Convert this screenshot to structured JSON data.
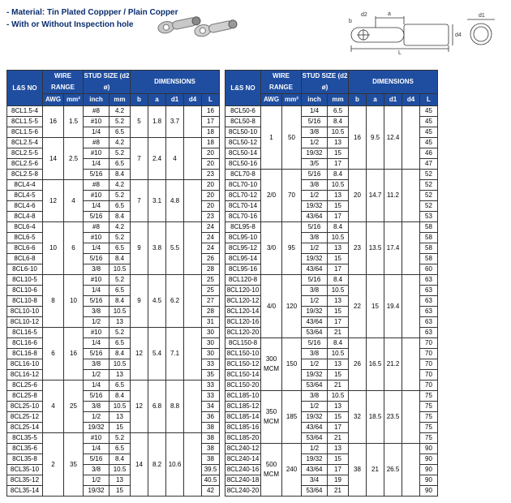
{
  "header": {
    "material_line1": "- Material: Tin Plated Coppper / Plain Copper",
    "material_line2": "- With or Without Inspection hole"
  },
  "table_headers": {
    "lsno": "L&S NO",
    "wire_range": "WIRE RANGE",
    "stud_size": "STUD SIZE (d2 ø)",
    "dimensions": "DIMENSIONS",
    "awg": "AWG",
    "mm2": "mm²",
    "inch": "inch",
    "mm": "mm",
    "b": "b",
    "a": "a",
    "d1": "d1",
    "d4": "d4",
    "l": "L"
  },
  "left_groups": [
    {
      "awg": "16",
      "mm2": "1.5",
      "b": "5",
      "a": "1.8",
      "d1": "3.7",
      "d4": "",
      "rows": [
        {
          "lsno": "8CL1.5-4",
          "inch": "#8",
          "mm": "4.2",
          "l": "16"
        },
        {
          "lsno": "8CL1.5-5",
          "inch": "#10",
          "mm": "5.2",
          "l": "17"
        },
        {
          "lsno": "8CL1.5-6",
          "inch": "1/4",
          "mm": "6.5",
          "l": "18"
        }
      ]
    },
    {
      "awg": "14",
      "mm2": "2.5",
      "b": "7",
      "a": "2.4",
      "d1": "4",
      "d4": "",
      "rows": [
        {
          "lsno": "8CL2.5-4",
          "inch": "#8",
          "mm": "4.2",
          "l": "18"
        },
        {
          "lsno": "8CL2.5-5",
          "inch": "#10",
          "mm": "5.2",
          "l": "20"
        },
        {
          "lsno": "8CL2.5-6",
          "inch": "1/4",
          "mm": "6.5",
          "l": "20"
        },
        {
          "lsno": "8CL2.5-8",
          "inch": "5/16",
          "mm": "8.4",
          "l": "23"
        }
      ]
    },
    {
      "awg": "12",
      "mm2": "4",
      "b": "7",
      "a": "3.1",
      "d1": "4.8",
      "d4": "",
      "rows": [
        {
          "lsno": "8CL4-4",
          "inch": "#8",
          "mm": "4.2",
          "l": "20"
        },
        {
          "lsno": "8CL4-5",
          "inch": "#10",
          "mm": "5.2",
          "l": "20"
        },
        {
          "lsno": "8CL4-6",
          "inch": "1/4",
          "mm": "6.5",
          "l": "20"
        },
        {
          "lsno": "8CL4-8",
          "inch": "5/16",
          "mm": "8.4",
          "l": "23"
        }
      ]
    },
    {
      "awg": "10",
      "mm2": "6",
      "b": "9",
      "a": "3.8",
      "d1": "5.5",
      "d4": "",
      "rows": [
        {
          "lsno": "8CL6-4",
          "inch": "#8",
          "mm": "4.2",
          "l": "24"
        },
        {
          "lsno": "8CL6-5",
          "inch": "#10",
          "mm": "5.2",
          "l": "24"
        },
        {
          "lsno": "8CL6-6",
          "inch": "1/4",
          "mm": "6.5",
          "l": "24"
        },
        {
          "lsno": "8CL6-8",
          "inch": "5/16",
          "mm": "8.4",
          "l": "26"
        },
        {
          "lsno": "8CL6-10",
          "inch": "3/8",
          "mm": "10.5",
          "l": "28"
        }
      ]
    },
    {
      "awg": "8",
      "mm2": "10",
      "b": "9",
      "a": "4.5",
      "d1": "6.2",
      "d4": "",
      "rows": [
        {
          "lsno": "8CL10-5",
          "inch": "#10",
          "mm": "5.2",
          "l": "25"
        },
        {
          "lsno": "8CL10-6",
          "inch": "1/4",
          "mm": "6.5",
          "l": "25"
        },
        {
          "lsno": "8CL10-8",
          "inch": "5/16",
          "mm": "8.4",
          "l": "27"
        },
        {
          "lsno": "8CL10-10",
          "inch": "3/8",
          "mm": "10.5",
          "l": "28"
        },
        {
          "lsno": "8CL10-12",
          "inch": "1/2",
          "mm": "13",
          "l": "31"
        }
      ]
    },
    {
      "awg": "6",
      "mm2": "16",
      "b": "12",
      "a": "5.4",
      "d1": "7.1",
      "d4": "",
      "rows": [
        {
          "lsno": "8CL16-5",
          "inch": "#10",
          "mm": "5.2",
          "l": "30"
        },
        {
          "lsno": "8CL16-6",
          "inch": "1/4",
          "mm": "6.5",
          "l": "30"
        },
        {
          "lsno": "8CL16-8",
          "inch": "5/16",
          "mm": "8.4",
          "l": "30"
        },
        {
          "lsno": "8CL16-10",
          "inch": "3/8",
          "mm": "10.5",
          "l": "33"
        },
        {
          "lsno": "8CL16-12",
          "inch": "1/2",
          "mm": "13",
          "l": "35"
        }
      ]
    },
    {
      "awg": "4",
      "mm2": "25",
      "b": "12",
      "a": "6.8",
      "d1": "8.8",
      "d4": "",
      "rows": [
        {
          "lsno": "8CL25-6",
          "inch": "1/4",
          "mm": "6.5",
          "l": "33"
        },
        {
          "lsno": "8CL25-8",
          "inch": "5/16",
          "mm": "8.4",
          "l": "33"
        },
        {
          "lsno": "8CL25-10",
          "inch": "3/8",
          "mm": "10.5",
          "l": "34"
        },
        {
          "lsno": "8CL25-12",
          "inch": "1/2",
          "mm": "13",
          "l": "36"
        },
        {
          "lsno": "8CL25-14",
          "inch": "19/32",
          "mm": "15",
          "l": "38"
        }
      ]
    },
    {
      "awg": "2",
      "mm2": "35",
      "b": "14",
      "a": "8.2",
      "d1": "10.6",
      "d4": "",
      "rows": [
        {
          "lsno": "8CL35-5",
          "inch": "#10",
          "mm": "5.2",
          "l": "38"
        },
        {
          "lsno": "8CL35-6",
          "inch": "1/4",
          "mm": "6.5",
          "l": "38"
        },
        {
          "lsno": "8CL35-8",
          "inch": "5/16",
          "mm": "8.4",
          "l": "38"
        },
        {
          "lsno": "8CL35-10",
          "inch": "3/8",
          "mm": "10.5",
          "l": "39.5"
        },
        {
          "lsno": "8CL35-12",
          "inch": "1/2",
          "mm": "13",
          "l": "40.5"
        },
        {
          "lsno": "8CL35-14",
          "inch": "19/32",
          "mm": "15",
          "l": "42"
        }
      ]
    }
  ],
  "right_groups": [
    {
      "awg": "1",
      "mm2": "50",
      "b": "16",
      "a": "9.5",
      "d1": "12.4",
      "d4": "",
      "rows": [
        {
          "lsno": "8CL50-6",
          "inch": "1/4",
          "mm": "6.5",
          "l": "45"
        },
        {
          "lsno": "8CL50-8",
          "inch": "5/16",
          "mm": "8.4",
          "l": "45"
        },
        {
          "lsno": "8CL50-10",
          "inch": "3/8",
          "mm": "10.5",
          "l": "45"
        },
        {
          "lsno": "8CL50-12",
          "inch": "1/2",
          "mm": "13",
          "l": "45"
        },
        {
          "lsno": "8CL50-14",
          "inch": "19/32",
          "mm": "15",
          "l": "46"
        },
        {
          "lsno": "8CL50-16",
          "inch": "3/5",
          "mm": "17",
          "l": "47"
        }
      ]
    },
    {
      "awg": "2/0",
      "mm2": "70",
      "b": "20",
      "a": "14.7",
      "d1": "11.2",
      "d4": "",
      "rows": [
        {
          "lsno": "8CL70-8",
          "inch": "5/16",
          "mm": "8.4",
          "l": "52"
        },
        {
          "lsno": "8CL70-10",
          "inch": "3/8",
          "mm": "10.5",
          "l": "52"
        },
        {
          "lsno": "8CL70-12",
          "inch": "1/2",
          "mm": "13",
          "l": "52"
        },
        {
          "lsno": "8CL70-14",
          "inch": "19/32",
          "mm": "15",
          "l": "52"
        },
        {
          "lsno": "8CL70-16",
          "inch": "43/64",
          "mm": "17",
          "l": "53"
        }
      ]
    },
    {
      "awg": "3/0",
      "mm2": "95",
      "b": "23",
      "a": "13.5",
      "d1": "17.4",
      "d4": "",
      "rows": [
        {
          "lsno": "8CL95-8",
          "inch": "5/16",
          "mm": "8.4",
          "l": "58"
        },
        {
          "lsno": "8CL95-10",
          "inch": "3/8",
          "mm": "10.5",
          "l": "58"
        },
        {
          "lsno": "8CL95-12",
          "inch": "1/2",
          "mm": "13",
          "l": "58"
        },
        {
          "lsno": "8CL95-14",
          "inch": "19/32",
          "mm": "15",
          "l": "58"
        },
        {
          "lsno": "8CL95-16",
          "inch": "43/64",
          "mm": "17",
          "l": "60"
        }
      ]
    },
    {
      "awg": "4/0",
      "mm2": "120",
      "b": "22",
      "a": "15",
      "d1": "19.4",
      "d4": "",
      "rows": [
        {
          "lsno": "8CL120-8",
          "inch": "5/16",
          "mm": "8.4",
          "l": "63"
        },
        {
          "lsno": "8CL120-10",
          "inch": "3/8",
          "mm": "10.5",
          "l": "63"
        },
        {
          "lsno": "8CL120-12",
          "inch": "1/2",
          "mm": "13",
          "l": "63"
        },
        {
          "lsno": "8CL120-14",
          "inch": "19/32",
          "mm": "15",
          "l": "63"
        },
        {
          "lsno": "8CL120-16",
          "inch": "43/64",
          "mm": "17",
          "l": "63"
        },
        {
          "lsno": "8CL120-20",
          "inch": "53/64",
          "mm": "21",
          "l": "63"
        }
      ]
    },
    {
      "awg": "300 MCM",
      "mm2": "150",
      "b": "26",
      "a": "16.5",
      "d1": "21.2",
      "d4": "",
      "rows": [
        {
          "lsno": "8CL150-8",
          "inch": "5/16",
          "mm": "8.4",
          "l": "70"
        },
        {
          "lsno": "8CL150-10",
          "inch": "3/8",
          "mm": "10.5",
          "l": "70"
        },
        {
          "lsno": "8CL150-12",
          "inch": "1/2",
          "mm": "13",
          "l": "70"
        },
        {
          "lsno": "8CL150-14",
          "inch": "19/32",
          "mm": "15",
          "l": "70"
        },
        {
          "lsno": "8CL150-20",
          "inch": "53/64",
          "mm": "21",
          "l": "70"
        }
      ]
    },
    {
      "awg": "350 MCM",
      "mm2": "185",
      "b": "32",
      "a": "18.5",
      "d1": "23.5",
      "d4": "",
      "rows": [
        {
          "lsno": "8CL185-10",
          "inch": "3/8",
          "mm": "10.5",
          "l": "75"
        },
        {
          "lsno": "8CL185-12",
          "inch": "1/2",
          "mm": "13",
          "l": "75"
        },
        {
          "lsno": "8CL185-14",
          "inch": "19/32",
          "mm": "15",
          "l": "75"
        },
        {
          "lsno": "8CL185-16",
          "inch": "43/64",
          "mm": "17",
          "l": "75"
        },
        {
          "lsno": "8CL185-20",
          "inch": "53/64",
          "mm": "21",
          "l": "75"
        }
      ]
    },
    {
      "awg": "500 MCM",
      "mm2": "240",
      "b": "38",
      "a": "21",
      "d1": "26.5",
      "d4": "",
      "rows": [
        {
          "lsno": "8CL240-12",
          "inch": "1/2",
          "mm": "13",
          "l": "90"
        },
        {
          "lsno": "8CL240-14",
          "inch": "19/32",
          "mm": "15",
          "l": "90"
        },
        {
          "lsno": "8CL240-16",
          "inch": "43/64",
          "mm": "17",
          "l": "90"
        },
        {
          "lsno": "8CL240-18",
          "inch": "3/4",
          "mm": "19",
          "l": "90"
        },
        {
          "lsno": "8CL240-20",
          "inch": "53/64",
          "mm": "21",
          "l": "90"
        }
      ]
    }
  ],
  "colors": {
    "header_bg": "#1f4ea1",
    "header_fg": "#ffffff",
    "border": "#333333",
    "page_bg": "#ffffff",
    "text_dark": "#0b2e6f"
  }
}
